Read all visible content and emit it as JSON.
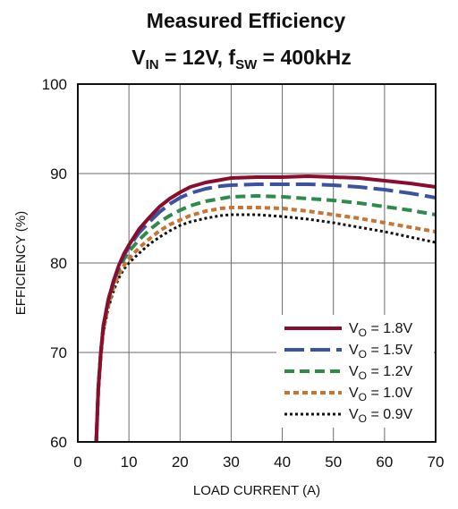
{
  "chart_data": {
    "type": "line",
    "title": "Measured Efficiency",
    "subtitle": {
      "v_main": "V",
      "v_sub": "IN",
      "v_rest": " = 12V, ",
      "f_main": "f",
      "f_sub": "SW",
      "f_rest": " = 400kHz"
    },
    "xlabel": "LOAD CURRENT (A)",
    "ylabel": "EFFICIENCY (%)",
    "xlim": [
      0,
      70
    ],
    "ylim": [
      60,
      100
    ],
    "x_ticks": [
      "0",
      "10",
      "20",
      "30",
      "40",
      "50",
      "60",
      "70"
    ],
    "y_ticks": [
      "60",
      "70",
      "80",
      "90",
      "100"
    ],
    "x_tick_values": [
      0,
      10,
      20,
      30,
      40,
      50,
      60,
      70
    ],
    "y_tick_values": [
      60,
      70,
      80,
      90,
      100
    ],
    "grid": true,
    "legend_position": "bottom-right",
    "series": [
      {
        "name": "V",
        "name_sub": "O",
        "name_rest": " = 1.8V",
        "color": "#8b0d2e",
        "style": "solid",
        "x": [
          3.6,
          4,
          4.5,
          5,
          6,
          7,
          8,
          9,
          10,
          12,
          14,
          16,
          18,
          20,
          22,
          25,
          28,
          30,
          35,
          40,
          45,
          50,
          55,
          60,
          65,
          70
        ],
        "y": [
          60,
          66,
          70,
          73,
          76,
          78,
          79.7,
          81,
          82,
          83.8,
          85.1,
          86.3,
          87.2,
          87.9,
          88.5,
          89,
          89.3,
          89.5,
          89.6,
          89.6,
          89.7,
          89.6,
          89.5,
          89.2,
          88.9,
          88.5
        ]
      },
      {
        "name": "V",
        "name_sub": "O",
        "name_rest": " = 1.5V",
        "color": "#3a52a3",
        "style": "longdash",
        "x": [
          3.6,
          4,
          4.5,
          5,
          6,
          7,
          8,
          9,
          10,
          12,
          14,
          16,
          18,
          20,
          22,
          25,
          28,
          30,
          35,
          40,
          45,
          50,
          55,
          60,
          65,
          70
        ],
        "y": [
          60,
          66,
          70,
          73,
          76,
          78,
          79.6,
          80.8,
          81.8,
          83.4,
          84.6,
          85.7,
          86.6,
          87.3,
          87.8,
          88.3,
          88.6,
          88.7,
          88.8,
          88.8,
          88.8,
          88.7,
          88.5,
          88.2,
          87.8,
          87.3
        ]
      },
      {
        "name": "V",
        "name_sub": "O",
        "name_rest": " = 1.2V",
        "color": "#2e8b4a",
        "style": "dash",
        "x": [
          3.6,
          4,
          4.5,
          5,
          6,
          7,
          8,
          9,
          10,
          12,
          14,
          16,
          18,
          20,
          22,
          25,
          28,
          30,
          35,
          40,
          45,
          50,
          55,
          60,
          65,
          70
        ],
        "y": [
          60,
          66,
          70,
          73,
          75.8,
          77.8,
          79.3,
          80.4,
          81.3,
          82.6,
          83.7,
          84.6,
          85.3,
          85.9,
          86.4,
          86.9,
          87.2,
          87.4,
          87.5,
          87.4,
          87.2,
          87,
          86.7,
          86.3,
          85.9,
          85.4
        ]
      },
      {
        "name": "V",
        "name_sub": "O",
        "name_rest": " = 1.0V",
        "color": "#c87533",
        "style": "shortdash",
        "x": [
          3.6,
          4,
          4.5,
          5,
          6,
          7,
          8,
          9,
          10,
          12,
          14,
          16,
          18,
          20,
          22,
          25,
          28,
          30,
          35,
          40,
          45,
          50,
          55,
          60,
          65,
          70
        ],
        "y": [
          60,
          65.5,
          69.5,
          72.5,
          75.3,
          77.3,
          78.7,
          79.7,
          80.5,
          81.7,
          82.7,
          83.6,
          84.3,
          84.8,
          85.3,
          85.8,
          86.1,
          86.2,
          86.2,
          86.1,
          85.8,
          85.4,
          85,
          84.5,
          84,
          83.5
        ]
      },
      {
        "name": "V",
        "name_sub": "O",
        "name_rest": " = 0.9V",
        "color": "#111111",
        "style": "dot",
        "x": [
          3.6,
          4,
          4.5,
          5,
          6,
          7,
          8,
          9,
          10,
          12,
          14,
          16,
          18,
          20,
          22,
          25,
          28,
          30,
          35,
          40,
          45,
          50,
          55,
          60,
          65,
          70
        ],
        "y": [
          60,
          65.5,
          69.5,
          72.3,
          75,
          76.9,
          78.3,
          79.3,
          80,
          81.1,
          82.1,
          82.9,
          83.6,
          84.2,
          84.6,
          85,
          85.3,
          85.4,
          85.4,
          85.2,
          84.9,
          84.5,
          84,
          83.5,
          82.9,
          82.3
        ]
      }
    ]
  }
}
